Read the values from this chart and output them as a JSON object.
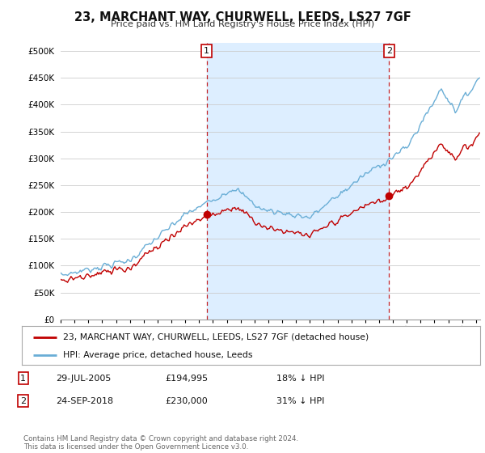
{
  "title": "23, MARCHANT WAY, CHURWELL, LEEDS, LS27 7GF",
  "subtitle": "Price paid vs. HM Land Registry's House Price Index (HPI)",
  "ytick_values": [
    0,
    50000,
    100000,
    150000,
    200000,
    250000,
    300000,
    350000,
    400000,
    450000,
    500000
  ],
  "ylim": [
    0,
    515000
  ],
  "xlim_start": 1995.0,
  "xlim_end": 2025.3,
  "hpi_color": "#6aaed6",
  "price_color": "#c00000",
  "fill_color": "#ddeeff",
  "marker1_x": 2005.55,
  "marker1_y": 194995,
  "marker2_x": 2018.72,
  "marker2_y": 230000,
  "legend_line1": "23, MARCHANT WAY, CHURWELL, LEEDS, LS27 7GF (detached house)",
  "legend_line2": "HPI: Average price, detached house, Leeds",
  "table_row1": [
    "1",
    "29-JUL-2005",
    "£194,995",
    "18% ↓ HPI"
  ],
  "table_row2": [
    "2",
    "24-SEP-2018",
    "£230,000",
    "31% ↓ HPI"
  ],
  "footer": "Contains HM Land Registry data © Crown copyright and database right 2024.\nThis data is licensed under the Open Government Licence v3.0.",
  "background_color": "#ffffff",
  "grid_color": "#cccccc"
}
